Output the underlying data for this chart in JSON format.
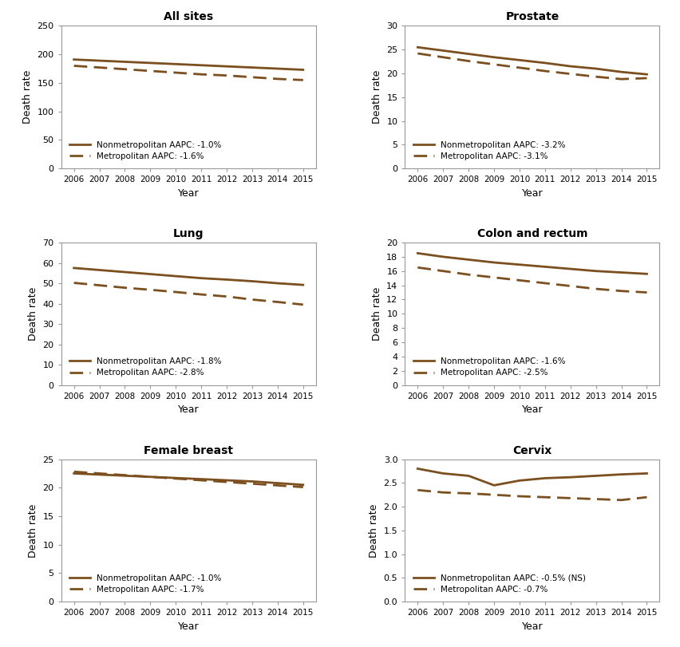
{
  "years": [
    2006,
    2007,
    2008,
    2009,
    2010,
    2011,
    2012,
    2013,
    2014,
    2015
  ],
  "panels": [
    {
      "title": "All sites",
      "nonmetro": [
        191,
        189,
        187,
        185,
        183,
        181,
        179,
        177,
        175,
        173
      ],
      "metro": [
        180,
        177,
        174,
        171,
        168,
        165,
        163,
        160,
        157,
        155
      ],
      "ylim": [
        0,
        250
      ],
      "yticks": [
        0,
        50,
        100,
        150,
        200,
        250
      ],
      "nonmetro_aapc": "-1.0%",
      "metro_aapc": "-1.6%"
    },
    {
      "title": "Prostate",
      "nonmetro": [
        25.5,
        24.8,
        24.1,
        23.4,
        22.8,
        22.2,
        21.5,
        21.0,
        20.3,
        19.8
      ],
      "metro": [
        24.2,
        23.4,
        22.6,
        21.9,
        21.2,
        20.5,
        19.9,
        19.3,
        18.8,
        19.0
      ],
      "ylim": [
        0,
        30
      ],
      "yticks": [
        0,
        5,
        10,
        15,
        20,
        25,
        30
      ],
      "nonmetro_aapc": "-3.2%",
      "metro_aapc": "-3.1%"
    },
    {
      "title": "Lung",
      "nonmetro": [
        57.5,
        56.5,
        55.5,
        54.5,
        53.5,
        52.5,
        51.8,
        51.0,
        50.0,
        49.2
      ],
      "metro": [
        50.2,
        49.0,
        47.8,
        46.8,
        45.7,
        44.5,
        43.5,
        42.0,
        40.8,
        39.5
      ],
      "ylim": [
        0,
        70
      ],
      "yticks": [
        0,
        10,
        20,
        30,
        40,
        50,
        60,
        70
      ],
      "nonmetro_aapc": "-1.8%",
      "metro_aapc": "-2.8%"
    },
    {
      "title": "Colon and rectum",
      "nonmetro": [
        18.5,
        18.0,
        17.6,
        17.2,
        16.9,
        16.6,
        16.3,
        16.0,
        15.8,
        15.6
      ],
      "metro": [
        16.5,
        16.0,
        15.5,
        15.1,
        14.7,
        14.3,
        13.9,
        13.5,
        13.2,
        13.0
      ],
      "ylim": [
        0,
        20
      ],
      "yticks": [
        0,
        2,
        4,
        6,
        8,
        10,
        12,
        14,
        16,
        18,
        20
      ],
      "nonmetro_aapc": "-1.6%",
      "metro_aapc": "-2.5%"
    },
    {
      "title": "Female breast",
      "nonmetro": [
        22.5,
        22.3,
        22.1,
        21.9,
        21.7,
        21.5,
        21.3,
        21.1,
        20.8,
        20.5
      ],
      "metro": [
        22.8,
        22.5,
        22.2,
        21.9,
        21.6,
        21.3,
        21.0,
        20.7,
        20.4,
        20.1
      ],
      "ylim": [
        0,
        25
      ],
      "yticks": [
        0,
        5,
        10,
        15,
        20,
        25
      ],
      "nonmetro_aapc": "-1.0%",
      "metro_aapc": "-1.7%"
    },
    {
      "title": "Cervix",
      "nonmetro": [
        2.8,
        2.7,
        2.65,
        2.45,
        2.55,
        2.6,
        2.62,
        2.65,
        2.68,
        2.7
      ],
      "metro": [
        2.35,
        2.3,
        2.28,
        2.25,
        2.22,
        2.2,
        2.18,
        2.16,
        2.14,
        2.2
      ],
      "ylim": [
        0,
        3
      ],
      "yticks": [
        0,
        0.5,
        1.0,
        1.5,
        2.0,
        2.5,
        3.0
      ],
      "nonmetro_aapc": "-0.5% (NS)",
      "metro_aapc": "-0.7%"
    }
  ],
  "line_color": "#7B4F1E",
  "background_color": "#ffffff",
  "axis_color": "#999999"
}
